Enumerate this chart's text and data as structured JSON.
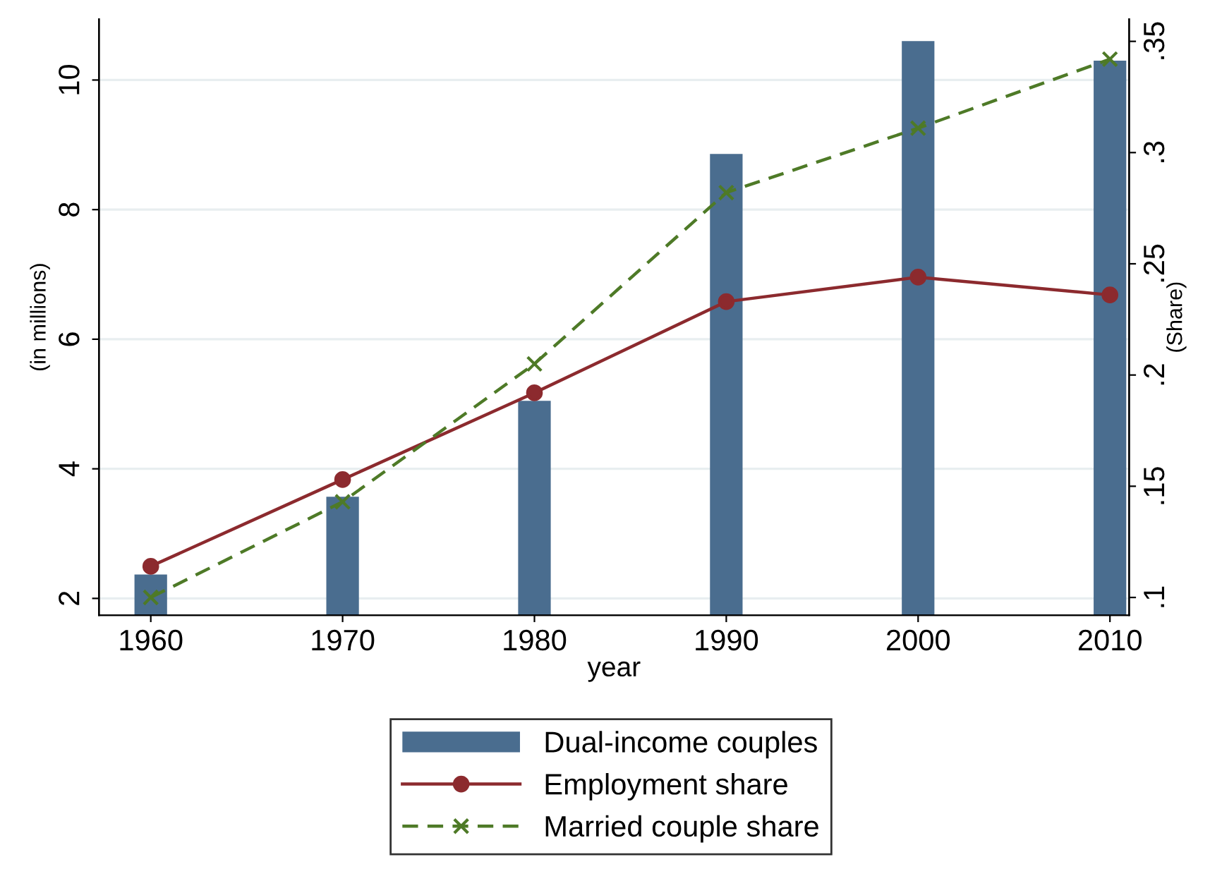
{
  "chart_data": {
    "type": "bar",
    "xlabel": "year",
    "ylabel": "(in millions)",
    "y2label": "(Share)",
    "x": [
      1960,
      1970,
      1980,
      1990,
      2000,
      2010
    ],
    "series": [
      {
        "name": "Dual-income couples",
        "color": "#4a6d8f",
        "values": [
          2.37,
          3.57,
          5.05,
          8.86,
          10.6,
          10.3
        ]
      },
      {
        "name": "Employment share",
        "type": "line",
        "axis": "y2",
        "color": "#8c2a2e",
        "marker": "circle",
        "line_style": "solid",
        "values": [
          0.114,
          0.153,
          0.192,
          0.233,
          0.244,
          0.236
        ]
      },
      {
        "name": "Married couple share",
        "type": "line",
        "axis": "y2",
        "color": "#4e7a27",
        "marker": "cross",
        "line_style": "dashed",
        "values": [
          0.1,
          0.143,
          0.205,
          0.282,
          0.311,
          0.342
        ]
      }
    ],
    "xlim": [
      1957.3,
      2011
    ],
    "xticks": [
      1960,
      1970,
      1980,
      1990,
      2000,
      2010
    ],
    "ylim": [
      1.74,
      10.94
    ],
    "yticks": [
      2,
      4,
      6,
      8,
      10
    ],
    "y2lim": [
      0.092,
      0.36
    ],
    "y2ticks": [
      {
        "value": 0.1,
        "label": ".1"
      },
      {
        "value": 0.15,
        "label": ".15"
      },
      {
        "value": 0.2,
        "label": ".2"
      },
      {
        "value": 0.25,
        "label": ".25"
      },
      {
        "value": 0.3,
        "label": ".3"
      },
      {
        "value": 0.35,
        "label": ".35"
      }
    ],
    "grid": "y",
    "legend": "bottom"
  }
}
